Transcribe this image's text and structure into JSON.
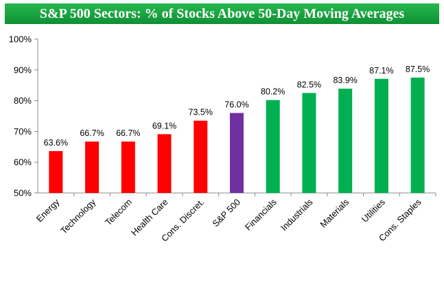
{
  "chart_data": {
    "type": "bar",
    "title": "S&P 500 Sectors: % of Stocks Above 50-Day Moving Averages",
    "categories": [
      "Energy",
      "Technology",
      "Telecom",
      "Health Care",
      "Cons. Discret.",
      "S&P 500",
      "Financials",
      "Industrials",
      "Materials",
      "Utilities",
      "Cons. Staples"
    ],
    "values": [
      63.6,
      66.7,
      66.7,
      69.1,
      73.5,
      76.0,
      80.2,
      82.5,
      83.9,
      87.1,
      87.5
    ],
    "value_labels": [
      "63.6%",
      "66.7%",
      "66.7%",
      "69.1%",
      "73.5%",
      "76.0%",
      "80.2%",
      "82.5%",
      "83.9%",
      "87.1%",
      "87.5%"
    ],
    "bar_colors": [
      "#ff0000",
      "#ff0000",
      "#ff0000",
      "#ff0000",
      "#ff0000",
      "#7030a0",
      "#00b050",
      "#00b050",
      "#00b050",
      "#00b050",
      "#00b050"
    ],
    "ylim": [
      50,
      100
    ],
    "yticks": [
      50,
      60,
      70,
      80,
      90,
      100
    ],
    "ytick_labels": [
      "50%",
      "60%",
      "70%",
      "80%",
      "90%",
      "100%"
    ],
    "xlabel": "",
    "ylabel": "",
    "grid": false,
    "legend": "none"
  },
  "colors": {
    "title_background": "#129a3a",
    "title_text": "#ffffff",
    "axis": "#888888"
  }
}
